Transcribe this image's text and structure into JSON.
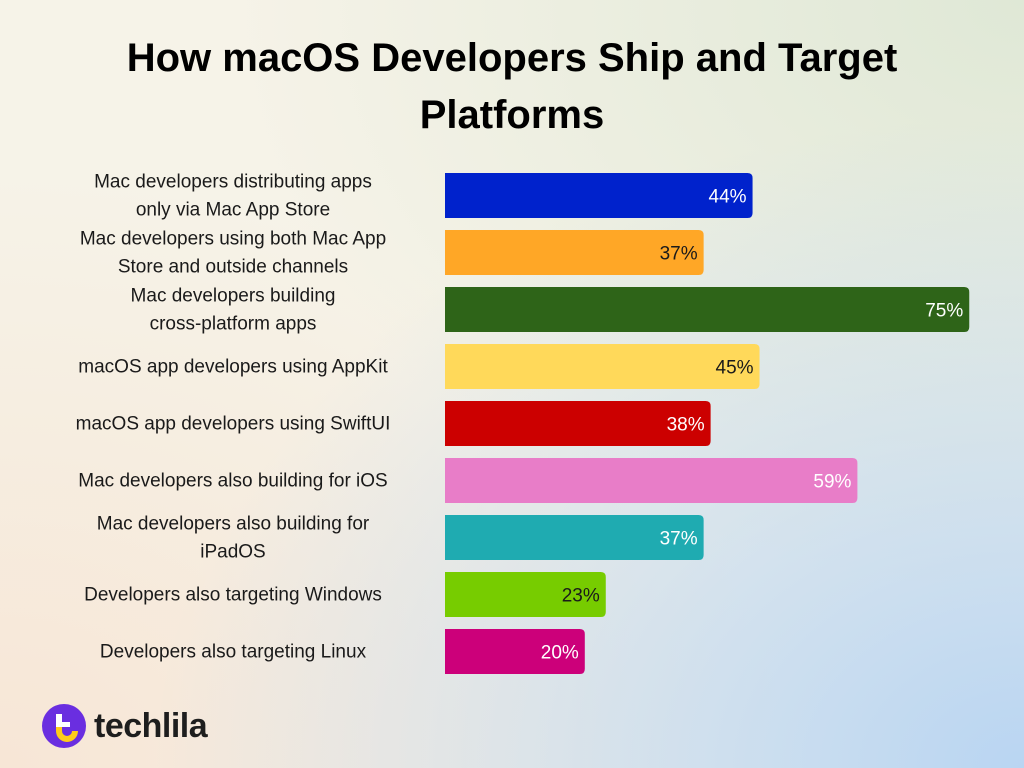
{
  "chart_data": {
    "type": "bar",
    "orientation": "horizontal",
    "title": "How macOS Developers Ship and Target Platforms",
    "categories": [
      "Mac developers distributing apps only via Mac App Store",
      "Mac developers using both Mac App Store and outside channels",
      "Mac developers building cross-platform apps",
      "macOS app developers using AppKit",
      "macOS app developers using SwiftUI",
      "Mac developers also building for iOS",
      "Mac developers also building for iPadOS",
      "Developers also targeting Windows",
      "Developers also targeting Linux"
    ],
    "values": [
      44,
      37,
      75,
      45,
      38,
      59,
      37,
      23,
      20
    ],
    "data_labels": [
      "44%",
      "37%",
      "75%",
      "45%",
      "38%",
      "59%",
      "37%",
      "23%",
      "20%"
    ],
    "colors": [
      "#0022cc",
      "#ffa726",
      "#2e6418",
      "#ffd95a",
      "#cc0000",
      "#e87dc8",
      "#1fabb1",
      "#77cc00",
      "#cc007a"
    ],
    "label_colors": [
      "#ffffff",
      "#1a1a1a",
      "#ffffff",
      "#1a1a1a",
      "#ffffff",
      "#ffffff",
      "#ffffff",
      "#1a1a1a",
      "#ffffff"
    ],
    "xlim": [
      0,
      100
    ],
    "grid": false,
    "legend": "none",
    "unit": "%"
  },
  "brand": {
    "name": "techlila",
    "icon": "techlila-logo-icon",
    "colors": [
      "#6a2ee0",
      "#ffcc1a"
    ]
  }
}
